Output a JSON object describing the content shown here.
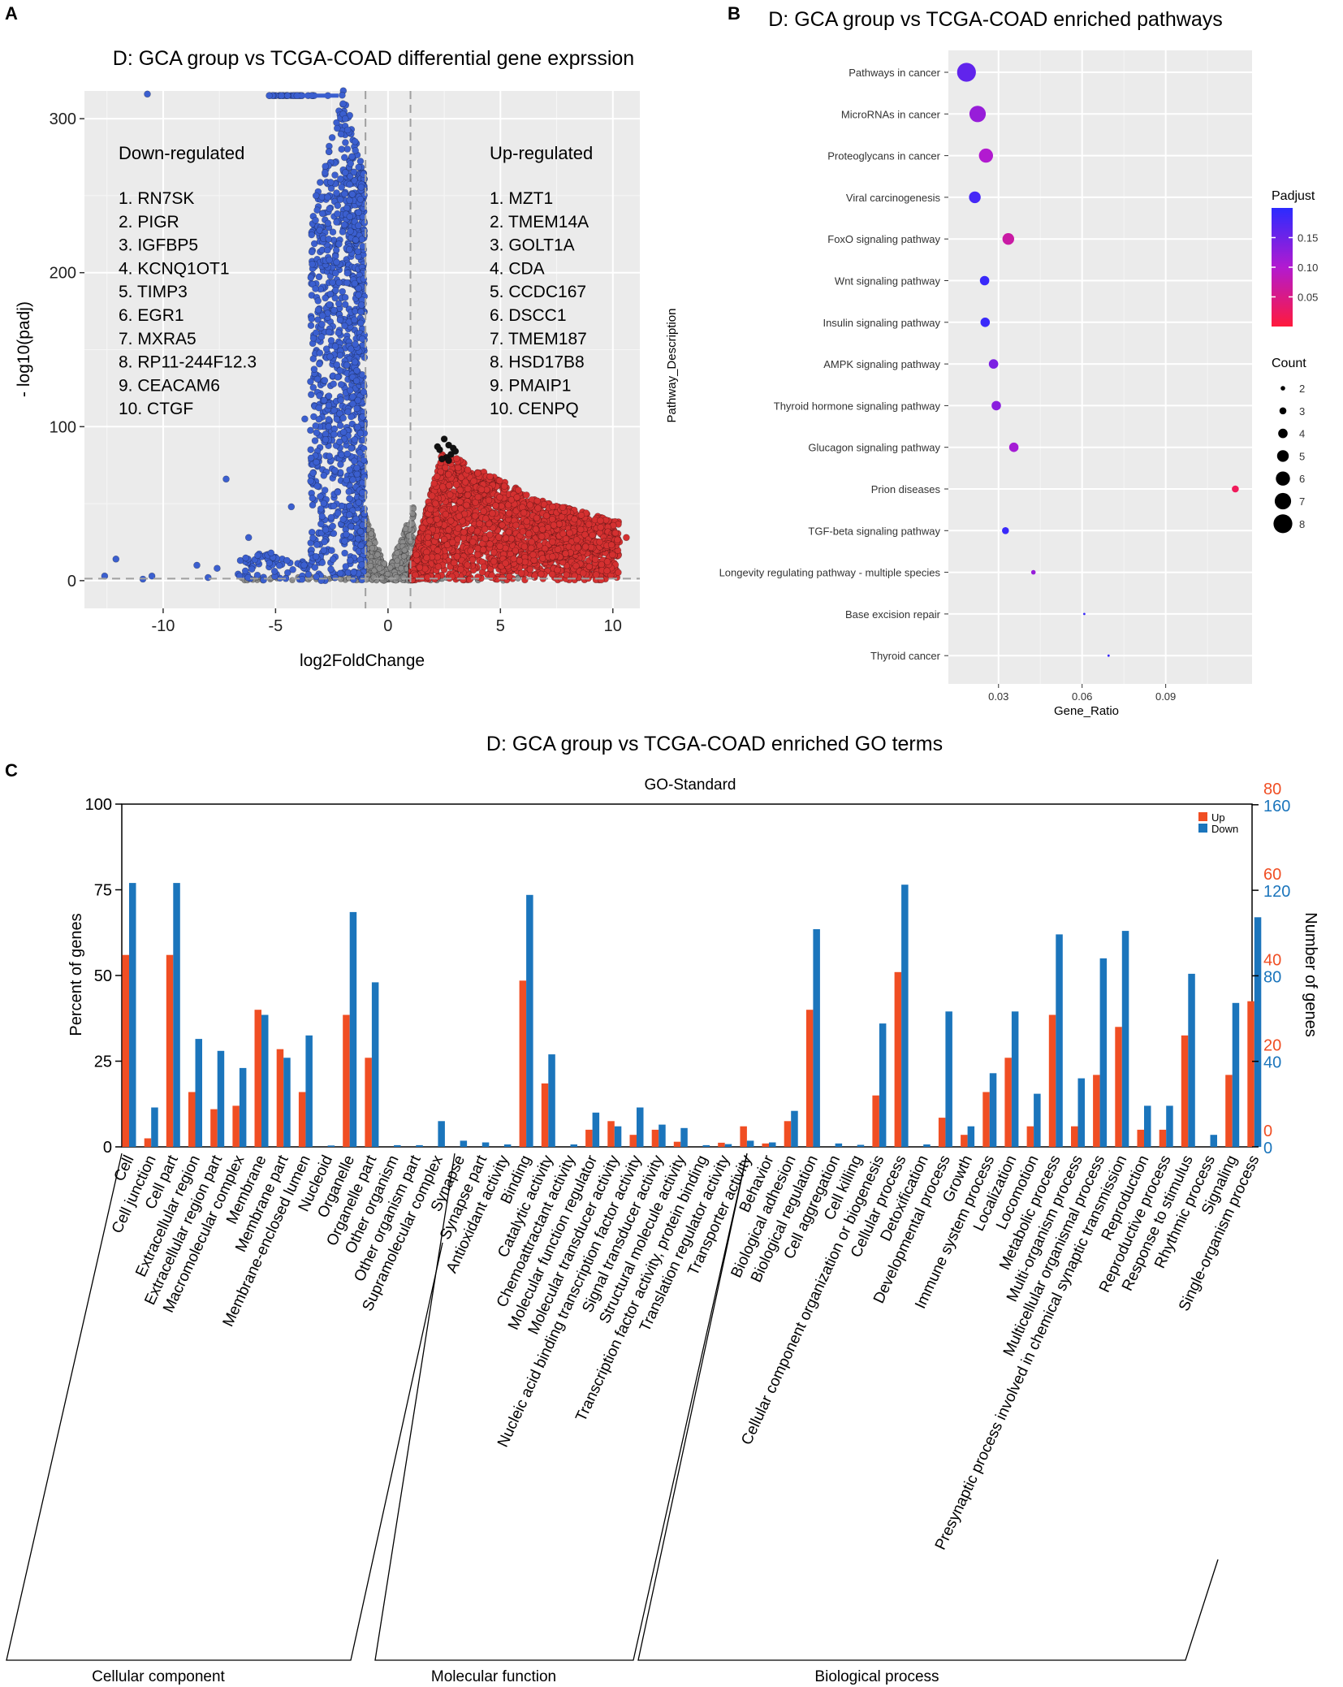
{
  "chart_data": [
    {
      "panel": "A",
      "type": "scatter",
      "title": "D: GCA group vs TCGA-COAD differential gene exprssion",
      "xlabel": "log2FoldChange",
      "ylabel": "- log10(padj)",
      "xlim": [
        -13.5,
        11.2
      ],
      "ylim": [
        -18,
        318
      ],
      "xticks": [
        -10,
        -5,
        0,
        5,
        10
      ],
      "yticks": [
        0,
        100,
        200,
        300
      ],
      "fold_change_cutoffs": [
        -1,
        1
      ],
      "padj_cutoff_line": 1.3,
      "colors": {
        "down": "#3b5fcf",
        "up": "#d43030",
        "ns": "#8a8a8a",
        "top": "#111111"
      },
      "down_title": "Down-regulated",
      "down_genes": [
        "1. RN7SK",
        "2. PIGR",
        "3. IGFBP5",
        "4. KCNQ1OT1",
        "5. TIMP3",
        "6. EGR1",
        "7. MXRA5",
        "8. RP11-244F12.3",
        "9. CEACAM6",
        "10. CTGF"
      ],
      "up_title": "Up-regulated",
      "up_genes": [
        "1. MZT1",
        "2. TMEM14A",
        "3. GOLT1A",
        "4. CDA",
        "5. CCDC167",
        "6. DSCC1",
        "7. TMEM187",
        "8. HSD17B8",
        "9. PMAIP1",
        "10. CENPQ"
      ]
    },
    {
      "panel": "B",
      "type": "scatter",
      "title": "D: GCA group vs TCGA-COAD enriched pathways",
      "xlabel": "Gene_Ratio",
      "ylabel": "Pathway_Description",
      "xlim": [
        0.012,
        0.121
      ],
      "xticks": [
        0.03,
        0.06,
        0.09
      ],
      "xtick_labels": [
        "0.03",
        "0.06",
        "0.09"
      ],
      "pathways": [
        "Pathways in cancer",
        "MicroRNAs in cancer",
        "Proteoglycans in cancer",
        "Viral carcinogenesis",
        "FoxO signaling pathway",
        "Wnt signaling pathway",
        "Insulin signaling pathway",
        "AMPK signaling pathway",
        "Thyroid hormone signaling pathway",
        "Glucagon signaling pathway",
        "Prion diseases",
        "TGF-beta signaling pathway",
        "Longevity regulating pathway - multiple species",
        "Base excision repair",
        "Thyroid cancer"
      ],
      "gene_ratio": [
        0.0185,
        0.0225,
        0.0255,
        0.0215,
        0.0335,
        0.025,
        0.0252,
        0.0282,
        0.0292,
        0.0355,
        0.115,
        0.0325,
        0.0425,
        0.0608,
        0.0695
      ],
      "padjust": [
        0.16,
        0.12,
        0.1,
        0.18,
        0.07,
        0.19,
        0.19,
        0.14,
        0.13,
        0.11,
        0.02,
        0.19,
        0.12,
        0.19,
        0.19
      ],
      "count": [
        8,
        7,
        6,
        5,
        5,
        4,
        4,
        4,
        4,
        4,
        3,
        3,
        2,
        1,
        1
      ],
      "padjust_legend": {
        "title": "Padjust",
        "ticks": [
          0.05,
          0.1,
          0.15
        ],
        "tick_labels": [
          "0.05",
          "0.10",
          "0.15"
        ],
        "range": [
          0.0,
          0.2
        ],
        "low_color": "#ff1a3c",
        "high_color": "#2b2bff"
      },
      "count_legend": {
        "title": "Count",
        "values": [
          2,
          3,
          4,
          5,
          6,
          7,
          8
        ],
        "labels": [
          "2",
          "3",
          "4",
          "5",
          "6",
          "7",
          "8"
        ]
      }
    },
    {
      "panel": "C",
      "type": "bar",
      "title": "D: GCA group vs TCGA-COAD enriched GO terms",
      "subtitle": "GO-Standard",
      "ylabel_left": "Percent of genes",
      "ylabel_right": "Number of genes",
      "ylim_left": [
        0,
        100
      ],
      "yticks_left": [
        0,
        25,
        50,
        75,
        100
      ],
      "yticks_left_labels": [
        "0",
        "25",
        "50",
        "75",
        "100"
      ],
      "right_up_ticks": [
        "0",
        "20",
        "40",
        "60",
        "80"
      ],
      "right_down_ticks": [
        "0",
        "40",
        "80",
        "120",
        "160"
      ],
      "up_color": "#f04e23",
      "down_color": "#1b75bc",
      "legend": [
        "Up",
        "Down"
      ],
      "categories": [
        "Cell",
        "Cell junction",
        "Cell part",
        "Extracellular region",
        "Extracellular region part",
        "Macromolecular complex",
        "Membrane",
        "Membrane part",
        "Membrane-enclosed lumen",
        "Nucleoid",
        "Organelle",
        "Organelle part",
        "Other organism",
        "Other organism part",
        "Supramolecular complex",
        "Synapse",
        "Synapse part",
        "Antioxidant activity",
        "Binding",
        "Catalytic activity",
        "Chemoattractant activity",
        "Molecular function regulator",
        "Molecular transducer activity",
        "Nucleic acid binding transcription factor activity",
        "Signal transducer activity",
        "Structural molecule activity",
        "Transcription factor activity, protein binding",
        "Translation regulator activity",
        "Transporter activity",
        "Behavior",
        "Biological adhesion",
        "Biological regulation",
        "Cell aggregation",
        "Cell killing",
        "Cellular component organization or biogenesis",
        "Cellular process",
        "Detoxification",
        "Developmental process",
        "Growth",
        "Immune system process",
        "Localization",
        "Locomotion",
        "Metabolic process",
        "Multi-organism process",
        "Multicellular organismal process",
        "Presynaptic process involved in chemical synaptic transmission",
        "Reproduction",
        "Reproductive process",
        "Response to stimulus",
        "Rhythmic process",
        "Signaling",
        "Single-organism process"
      ],
      "series": [
        {
          "name": "Up",
          "values": [
            56,
            2.5,
            56,
            16,
            11,
            12,
            40,
            28.5,
            16,
            0,
            38.5,
            26,
            0,
            0,
            0,
            0,
            0,
            0,
            48.5,
            18.5,
            0,
            5,
            7.5,
            3.5,
            5,
            1.5,
            0,
            1.2,
            6,
            1,
            7.5,
            40,
            0,
            0,
            15,
            51,
            0,
            8.5,
            3.5,
            16,
            26,
            6,
            38.5,
            6,
            21,
            35,
            5,
            5,
            32.5,
            0,
            21,
            42.5
          ]
        },
        {
          "name": "Down",
          "values": [
            77,
            11.5,
            77,
            31.5,
            28,
            23,
            38.5,
            26,
            32.5,
            0.4,
            68.5,
            48,
            0.5,
            0.5,
            7.5,
            1.8,
            1.3,
            0.7,
            73.5,
            27,
            0.7,
            10,
            6,
            11.5,
            6.5,
            5.5,
            0.5,
            0.8,
            1.8,
            1.3,
            10.5,
            63.5,
            1,
            0.6,
            36,
            76.5,
            0.7,
            39.5,
            6,
            21.5,
            39.5,
            15.5,
            62,
            20,
            55,
            63,
            12,
            12,
            50.5,
            3.5,
            42,
            67
          ]
        }
      ],
      "groups": [
        {
          "name": "Cellular component",
          "first": 0,
          "last": 16
        },
        {
          "name": "Molecular function",
          "first": 17,
          "last": 28
        },
        {
          "name": "Biological process",
          "first": 29,
          "last": 51
        }
      ]
    }
  ],
  "panel_labels": [
    "A",
    "B",
    "C"
  ]
}
